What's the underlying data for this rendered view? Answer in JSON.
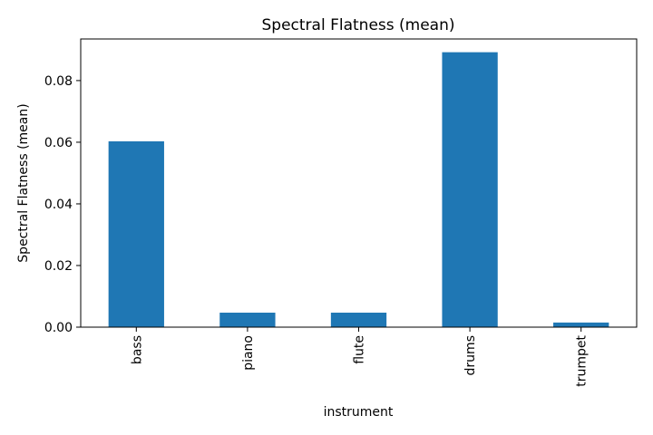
{
  "chart_data": {
    "type": "bar",
    "title": "Spectral Flatness (mean)",
    "xlabel": "instrument",
    "ylabel": "Spectral Flatness (mean)",
    "categories": [
      "bass",
      "piano",
      "flute",
      "drums",
      "trumpet"
    ],
    "values": [
      0.0603,
      0.0047,
      0.0047,
      0.0892,
      0.0015
    ],
    "ylim": [
      0,
      0.0935
    ],
    "yticks": [
      "0.00",
      "0.02",
      "0.04",
      "0.06",
      "0.08"
    ],
    "grid": false,
    "legend": "none",
    "bar_color": "#1f77b4"
  }
}
